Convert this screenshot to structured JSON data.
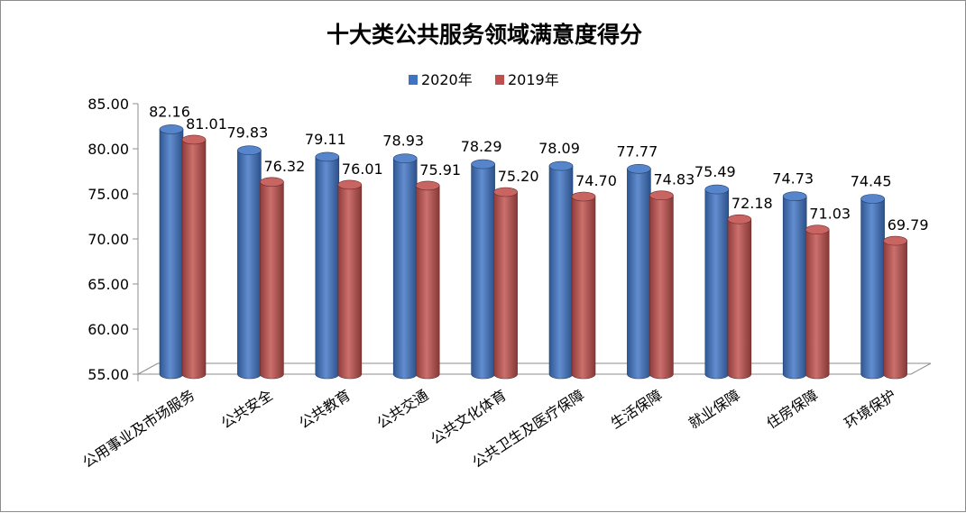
{
  "chart_data": {
    "type": "bar",
    "title": "十大类公共服务领域满意度得分",
    "categories": [
      "公用事业及市场服务",
      "公共安全",
      "公共教育",
      "公共交通",
      "公共文化体育",
      "公共卫生及医疗保障",
      "生活保障",
      "就业保障",
      "住房保障",
      "环境保护"
    ],
    "series": [
      {
        "name": "2020年",
        "color": "#3F74C4",
        "values": [
          82.16,
          79.83,
          79.11,
          78.93,
          78.29,
          78.09,
          77.77,
          75.49,
          74.73,
          74.45
        ]
      },
      {
        "name": "2019年",
        "color": "#C0504D",
        "values": [
          81.01,
          76.32,
          76.01,
          75.91,
          75.2,
          74.7,
          74.83,
          72.18,
          71.03,
          69.79
        ]
      }
    ],
    "ylim": [
      55,
      85
    ],
    "yticks": [
      "55.00",
      "60.00",
      "65.00",
      "70.00",
      "75.00",
      "80.00",
      "85.00"
    ],
    "legend_position": "top",
    "grid": false
  }
}
